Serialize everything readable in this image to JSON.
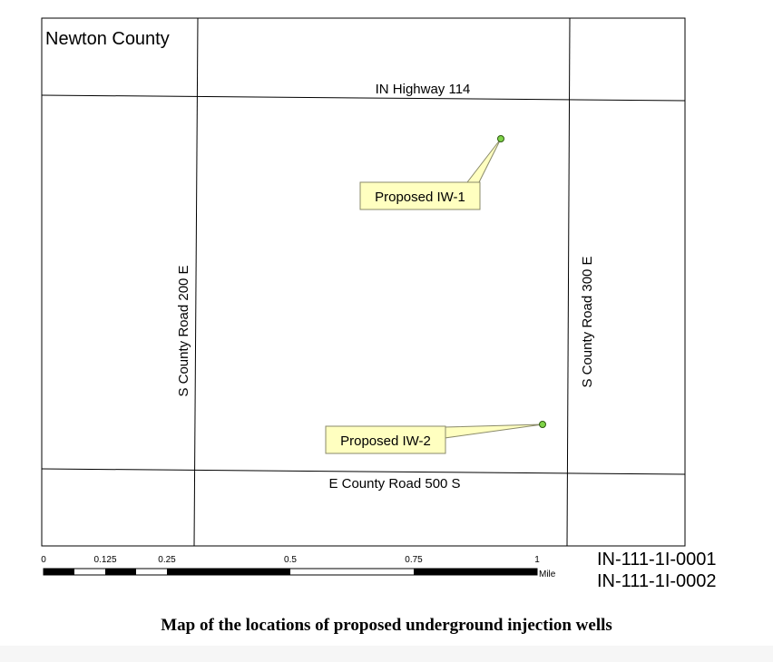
{
  "map": {
    "county_label": "Newton County",
    "roads": {
      "north": "IN Highway 114",
      "south": "E County Road 500 S",
      "west": "S County Road 200 E",
      "east": "S County Road 300 E"
    },
    "wells": [
      {
        "label": "Proposed IW-1",
        "marker_color": "#7ed348"
      },
      {
        "label": "Proposed IW-2",
        "marker_color": "#7ed348"
      }
    ],
    "label_box_color": "#ffffc0",
    "scale_bar": {
      "ticks": [
        "0",
        "0.125",
        "0.25",
        "0.5",
        "0.75",
        "1"
      ],
      "unit": "Mile"
    }
  },
  "permit_ids": [
    "IN-111-1I-0001",
    "IN-111-1I-0002"
  ],
  "caption": "Map of the locations of proposed underground injection wells"
}
